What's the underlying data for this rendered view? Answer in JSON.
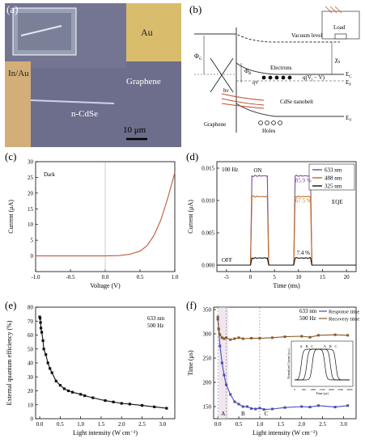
{
  "figure": {
    "panels": [
      {
        "label": "(a)"
      },
      {
        "label": "(b)"
      },
      {
        "label": "(c)"
      },
      {
        "label": "(d)"
      },
      {
        "label": "(e)"
      },
      {
        "label": "(f)"
      }
    ]
  },
  "panel_a": {
    "labels": {
      "au": "Au",
      "inau": "In/Au",
      "graphene": "Graphene",
      "ncdse": "n-CdSe",
      "scalebar": "10 μm"
    },
    "colors": {
      "substrate": "#6e6e8a",
      "au": "#d6b86a",
      "inau": "#d4b07a"
    }
  },
  "panel_b": {
    "labels": {
      "vacuum": "Vacuum level",
      "chi": "χ",
      "chi_sub": "S",
      "phiG": "Φ",
      "phiG_sub": "G",
      "phiB": "Φ",
      "phiB_sub": "B",
      "electrons": "Electrons",
      "qv": "qV",
      "qvi": "q(V",
      "qvi_sub": "i",
      "qvi_tail": " − V)",
      "ec": "E",
      "ec_sub": "C",
      "ef": "E",
      "ef_sub": "F",
      "hv": "hν",
      "nanobelt": "CdSe nanobelt",
      "graphene": "Graphene",
      "holes": "Holes",
      "ev": "E",
      "ev_sub": "V",
      "load": "Load"
    }
  },
  "chart_data": [
    {
      "panel": "c",
      "type": "line",
      "annotation": "Dark",
      "xlabel": "Voltage (V)",
      "ylabel": "Current (μA)",
      "xlim": [
        -1.0,
        1.0
      ],
      "ylim": [
        -5,
        30
      ],
      "xticks": [
        "-1.0",
        "-0.5",
        "0.0",
        "0.5",
        "1.0"
      ],
      "yticks": [
        "0",
        "5",
        "10",
        "15",
        "20",
        "25",
        "30"
      ],
      "color": "#c05a3a",
      "x": [
        -1.0,
        -0.5,
        0.0,
        0.2,
        0.35,
        0.5,
        0.6,
        0.7,
        0.8,
        0.9,
        1.0
      ],
      "y": [
        0,
        0,
        0,
        0.1,
        0.5,
        1.5,
        3.2,
        6.5,
        11.5,
        18.5,
        26.5
      ]
    },
    {
      "panel": "d",
      "type": "line",
      "annotation_freq": "100 Hz",
      "annotation_on": "ON",
      "annotation_off": "OFF",
      "annotation_eqe": "EQE",
      "pct_labels": [
        "85.9 %",
        "67.5 %",
        "7.4 %"
      ],
      "xlabel": "Time (ms)",
      "ylabel": "Current (μA)",
      "xlim": [
        -7,
        22
      ],
      "ylim": [
        -0.001,
        0.016
      ],
      "xticks": [
        "-5",
        "0",
        "5",
        "10",
        "15",
        "20"
      ],
      "yticks": [
        "0.000",
        "0.005",
        "0.010",
        "0.015"
      ],
      "series": [
        {
          "name": "633 nm",
          "color": "#7a4a9a",
          "on": 0.0138,
          "off": 0.0
        },
        {
          "name": "488 nm",
          "color": "#c06a20",
          "on": 0.0106,
          "off": 0.0
        },
        {
          "name": "325 nm",
          "color": "#111111",
          "on": 0.0011,
          "off": 0.0
        }
      ],
      "pulses": [
        [
          0,
          3.8
        ],
        [
          9,
          12.8
        ]
      ]
    },
    {
      "panel": "e",
      "type": "line",
      "annotation1": "633 nm",
      "annotation2": "500 Hz",
      "xlabel": "Light intensity (W cm⁻²)",
      "ylabel": "External quantum efficiency (%)",
      "xlim": [
        -0.1,
        3.3
      ],
      "ylim": [
        0,
        80
      ],
      "xticks": [
        "0.0",
        "0.5",
        "1.0",
        "1.5",
        "2.0",
        "2.5",
        "3.0"
      ],
      "yticks": [
        "0",
        "10",
        "20",
        "30",
        "40",
        "50",
        "60",
        "70",
        "80"
      ],
      "color": "#111111",
      "x": [
        0.0,
        0.01,
        0.02,
        0.03,
        0.05,
        0.08,
        0.1,
        0.15,
        0.2,
        0.25,
        0.3,
        0.4,
        0.5,
        0.6,
        0.7,
        0.8,
        1.0,
        1.1,
        1.3,
        1.6,
        1.8,
        2.0,
        2.2,
        2.5,
        2.8,
        3.1
      ],
      "y": [
        73,
        72,
        69,
        65,
        62,
        56,
        50,
        46,
        40,
        36,
        33,
        27,
        24,
        21.5,
        20,
        19,
        17.5,
        16.5,
        15,
        13,
        12,
        11,
        10.5,
        9.5,
        8.5,
        7.5
      ]
    },
    {
      "panel": "f",
      "type": "line",
      "annotation1": "633 nm",
      "annotation2": "500 Hz",
      "marks": [
        "A",
        "B",
        "C"
      ],
      "xlabel": "Light intensity (W cm⁻²)",
      "ylabel": "Time (μs)",
      "xlim": [
        -0.1,
        3.3
      ],
      "ylim": [
        125,
        355
      ],
      "xticks": [
        "0.0",
        "0.5",
        "1.0",
        "1.5",
        "2.0",
        "2.5",
        "3.0"
      ],
      "yticks": [
        "150",
        "200",
        "250",
        "300",
        "350"
      ],
      "series": [
        {
          "name": "Response time",
          "color": "#4a4ab0",
          "x": [
            0.0,
            0.02,
            0.05,
            0.1,
            0.15,
            0.2,
            0.3,
            0.4,
            0.5,
            0.6,
            0.7,
            0.8,
            0.9,
            1.0,
            1.1,
            1.3,
            1.6,
            2.0,
            2.2,
            2.4,
            2.8,
            3.1
          ],
          "y": [
            330,
            310,
            275,
            240,
            215,
            195,
            175,
            160,
            155,
            150,
            150,
            146,
            145,
            147,
            144,
            145,
            148,
            150,
            149,
            152,
            149,
            152
          ]
        },
        {
          "name": "Recovery time",
          "color": "#8a5a2a",
          "x": [
            0.0,
            0.02,
            0.05,
            0.1,
            0.15,
            0.2,
            0.3,
            0.4,
            0.5,
            0.6,
            0.8,
            1.0,
            1.3,
            1.6,
            2.0,
            2.2,
            2.4,
            2.8,
            3.1
          ],
          "y": [
            335,
            310,
            298,
            292,
            290,
            292,
            288,
            290,
            292,
            290,
            291,
            291,
            292,
            294,
            295,
            293,
            297,
            298,
            297
          ]
        }
      ],
      "inset": {
        "xlabel": "Time (μs)",
        "ylabel": "Normalized Current (a.u.)",
        "xticks": [
          "0",
          "500",
          "1000",
          "1500",
          "2000",
          "2500",
          "3000"
        ],
        "peak_labels": [
          "A",
          "B",
          "C",
          "A",
          "B",
          "C"
        ]
      }
    }
  ]
}
